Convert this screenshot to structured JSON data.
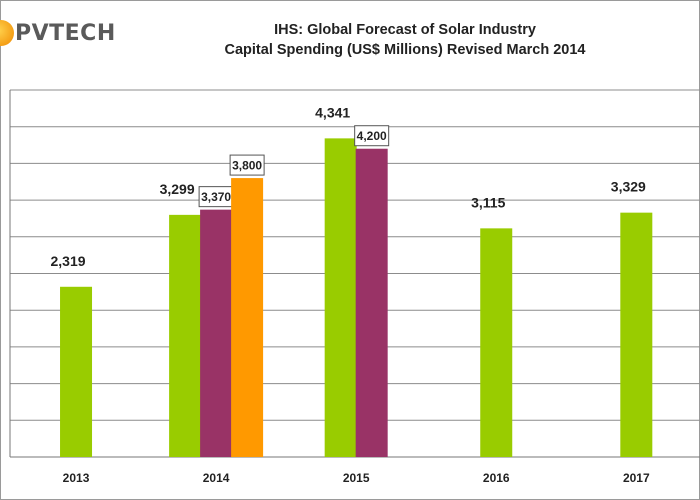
{
  "logo": {
    "text": "PVTECH"
  },
  "chart_data": {
    "type": "bar",
    "title": "IHS: Global Forecast of Solar Industry",
    "subtitle": "Capital Spending (US$ Millions) Revised March 2014",
    "xlabel": "",
    "ylabel": "",
    "categories": [
      "2013",
      "2014",
      "2015",
      "2016",
      "2017"
    ],
    "ylim": [
      0,
      5000
    ],
    "grid": true,
    "legend": "none",
    "series": [
      {
        "color": "#99cc00",
        "values": [
          2319,
          3299,
          4341,
          3115,
          3329
        ],
        "labels": [
          "2,319",
          "3,299",
          "4,341",
          "3,115",
          "3,329"
        ],
        "label_style": "plain"
      },
      {
        "color": "#993366",
        "values": [
          null,
          3370,
          4200,
          null,
          null
        ],
        "labels": [
          null,
          "3,370",
          "4,200",
          null,
          null
        ],
        "label_style": "boxed"
      },
      {
        "color": "#ff9900",
        "values": [
          null,
          3800,
          null,
          null,
          null
        ],
        "labels": [
          null,
          "3,800",
          null,
          null,
          null
        ],
        "label_style": "boxed"
      }
    ]
  }
}
